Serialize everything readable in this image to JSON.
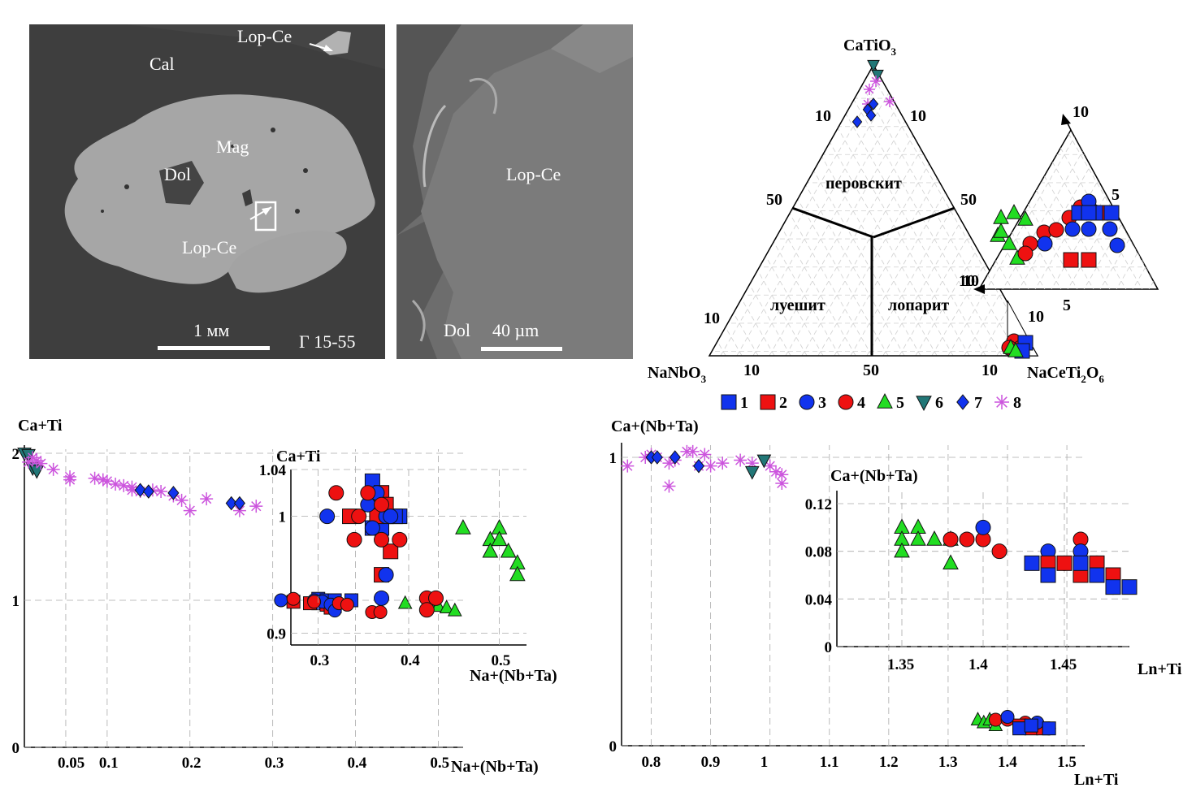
{
  "photo_left": {
    "labels": {
      "cal": "Cal",
      "lop_top": "Lop-Ce",
      "mag": "Mag",
      "dol": "Dol",
      "lop_mid": "Lop-Ce"
    },
    "scale_text": "1 мм",
    "sample_id": "Г 15-55"
  },
  "photo_right": {
    "labels": {
      "lop": "Lop-Ce",
      "dol": "Dol"
    },
    "scale_text": "40 µm"
  },
  "ternary": {
    "apex_top": "CaTiO",
    "apex_top_sub": "3",
    "apex_left": "NaNbO",
    "apex_left_sub": "3",
    "apex_right": "NaCeTi",
    "apex_right_sub1": "2",
    "apex_right_mid": "O",
    "apex_right_sub2": "6",
    "fields": {
      "perovskite": "перовскит",
      "loueshite": "луешит",
      "loparite": "лопарит"
    },
    "edge_labels": {
      "top_left": "10",
      "top_right": "10",
      "mid_left": "50",
      "mid_right": "50",
      "low_left": "10",
      "low_right": "10",
      "base_left": "10",
      "base_mid": "50",
      "base_right": "10"
    },
    "inset_labels": {
      "top": "10",
      "upper": "5",
      "left": "10",
      "bottom": "5",
      "corner": "10"
    }
  },
  "legend": {
    "items": [
      {
        "label": "1",
        "marker": "square",
        "color": "#1133ee"
      },
      {
        "label": "2",
        "marker": "square",
        "color": "#ee1111"
      },
      {
        "label": "3",
        "marker": "circle",
        "color": "#1133ee"
      },
      {
        "label": "4",
        "marker": "circle",
        "color": "#ee1111"
      },
      {
        "label": "5",
        "marker": "triangle",
        "color": "#22dd22"
      },
      {
        "label": "6",
        "marker": "tri-down",
        "color": "#227777"
      },
      {
        "label": "7",
        "marker": "diamond",
        "color": "#1133ee"
      },
      {
        "label": "8",
        "marker": "star",
        "color": "#cc55dd"
      }
    ]
  },
  "chart_data": [
    {
      "type": "scatter",
      "name": "left-main",
      "xlabel": "Na+(Nb+Ta)",
      "ylabel": "Ca+Ti",
      "xticks": [
        "0.05",
        "0.1",
        "0.2",
        "0.3",
        "0.4",
        "0.5"
      ],
      "yticks": [
        "0",
        "1",
        "2"
      ],
      "xlim": [
        0,
        0.53
      ],
      "ylim": [
        0,
        2
      ],
      "series": [
        {
          "group": "6",
          "points": [
            [
              0,
              2.0
            ],
            [
              0.005,
              1.99
            ],
            [
              0.01,
              1.9
            ],
            [
              0.015,
              1.88
            ]
          ]
        },
        {
          "group": "8",
          "points": [
            [
              0.005,
              1.94
            ],
            [
              0.01,
              1.97
            ],
            [
              0.015,
              1.95
            ],
            [
              0.02,
              1.93
            ],
            [
              0.035,
              1.89
            ],
            [
              0.055,
              1.84
            ],
            [
              0.055,
              1.82
            ],
            [
              0.085,
              1.83
            ],
            [
              0.095,
              1.82
            ],
            [
              0.1,
              1.81
            ],
            [
              0.11,
              1.79
            ],
            [
              0.12,
              1.78
            ],
            [
              0.13,
              1.77
            ],
            [
              0.13,
              1.75
            ],
            [
              0.14,
              1.74
            ],
            [
              0.155,
              1.75
            ],
            [
              0.165,
              1.74
            ],
            [
              0.18,
              1.71
            ],
            [
              0.19,
              1.68
            ],
            [
              0.2,
              1.61
            ],
            [
              0.22,
              1.69
            ],
            [
              0.26,
              1.61
            ],
            [
              0.28,
              1.64
            ]
          ]
        },
        {
          "group": "7",
          "points": [
            [
              0.14,
              1.75
            ],
            [
              0.15,
              1.74
            ],
            [
              0.18,
              1.73
            ],
            [
              0.25,
              1.66
            ],
            [
              0.26,
              1.66
            ]
          ]
        },
        {
          "group": "1",
          "points": [
            [
              0.355,
              1.01
            ],
            [
              0.365,
              1.0
            ],
            [
              0.375,
              1.0
            ],
            [
              0.395,
              1.0
            ],
            [
              0.355,
              0.98
            ]
          ]
        },
        {
          "group": "2",
          "points": [
            [
              0.325,
              0.99
            ],
            [
              0.345,
              0.98
            ],
            [
              0.365,
              0.97
            ],
            [
              0.375,
              0.96
            ],
            [
              0.37,
              0.95
            ]
          ]
        },
        {
          "group": "3",
          "points": [
            [
              0.31,
              1.0
            ],
            [
              0.35,
              1.0
            ],
            [
              0.36,
              0.99
            ],
            [
              0.37,
              0.97
            ],
            [
              0.375,
              0.93
            ]
          ]
        },
        {
          "group": "4",
          "points": [
            [
              0.325,
              1.01
            ],
            [
              0.35,
              0.99
            ],
            [
              0.38,
              0.98
            ],
            [
              0.39,
              0.97
            ],
            [
              0.42,
              0.92
            ],
            [
              0.43,
              0.92
            ]
          ]
        },
        {
          "group": "5",
          "points": [
            [
              0.46,
              0.98
            ],
            [
              0.49,
              0.97
            ],
            [
              0.5,
              0.96
            ],
            [
              0.51,
              0.95
            ],
            [
              0.52,
              0.93
            ]
          ]
        }
      ]
    },
    {
      "type": "scatter",
      "name": "left-inset",
      "xlabel": "Na+(Nb+Ta)",
      "ylabel": "Ca+Ti",
      "xticks": [
        "0.3",
        "0.4",
        "0.5"
      ],
      "yticks": [
        "0.9",
        "1",
        "1.04"
      ],
      "xlim": [
        0.27,
        0.53
      ],
      "ylim": [
        0.89,
        1.04
      ],
      "series": [
        {
          "group": "1",
          "points": [
            [
              0.36,
              1.03
            ],
            [
              0.37,
              1.02
            ],
            [
              0.365,
              1.005
            ],
            [
              0.375,
              1.0
            ],
            [
              0.39,
              1.0
            ],
            [
              0.36,
              0.99
            ],
            [
              0.37,
              0.99
            ],
            [
              0.385,
              1.0
            ]
          ]
        },
        {
          "group": "2",
          "points": [
            [
              0.335,
              1.0
            ],
            [
              0.37,
              1.02
            ],
            [
              0.375,
              1.01
            ],
            [
              0.365,
              1.0
            ],
            [
              0.38,
              0.97
            ],
            [
              0.37,
              0.95
            ]
          ]
        },
        {
          "group": "3",
          "points": [
            [
              0.31,
              1.0
            ],
            [
              0.355,
              1.01
            ],
            [
              0.365,
              1.02
            ],
            [
              0.375,
              1.0
            ],
            [
              0.36,
              0.99
            ],
            [
              0.37,
              0.93
            ],
            [
              0.375,
              0.95
            ],
            [
              0.38,
              1.0
            ]
          ]
        },
        {
          "group": "4",
          "points": [
            [
              0.32,
              1.02
            ],
            [
              0.345,
              1.0
            ],
            [
              0.355,
              1.02
            ],
            [
              0.34,
              0.98
            ],
            [
              0.37,
              0.98
            ],
            [
              0.39,
              0.98
            ],
            [
              0.42,
              0.93
            ],
            [
              0.43,
              0.93
            ],
            [
              0.42,
              0.92
            ],
            [
              0.37,
              1.01
            ]
          ]
        },
        {
          "group": "5",
          "points": [
            [
              0.46,
              0.99
            ],
            [
              0.49,
              0.98
            ],
            [
              0.5,
              0.99
            ],
            [
              0.49,
              0.97
            ],
            [
              0.5,
              0.98
            ],
            [
              0.51,
              0.97
            ],
            [
              0.52,
              0.96
            ],
            [
              0.52,
              0.95
            ]
          ]
        }
      ]
    },
    {
      "type": "scatter",
      "name": "right-main",
      "xlabel": "Ln+Ti",
      "ylabel": "Ca+(Nb+Ta)",
      "xticks": [
        "0.8",
        "0.9",
        "1",
        "1.1",
        "1.2",
        "1.3",
        "1.4",
        "1.5"
      ],
      "yticks": [
        "0",
        "1"
      ],
      "xlim": [
        0.75,
        1.53
      ],
      "ylim": [
        0,
        1
      ],
      "series": [
        {
          "group": "8",
          "points": [
            [
              0.76,
              0.97
            ],
            [
              0.79,
              1.0
            ],
            [
              0.8,
              1.01
            ],
            [
              0.81,
              1.0
            ],
            [
              0.83,
              0.98
            ],
            [
              0.84,
              0.99
            ],
            [
              0.86,
              1.02
            ],
            [
              0.87,
              1.02
            ],
            [
              0.89,
              1.01
            ],
            [
              0.88,
              0.97
            ],
            [
              0.9,
              0.97
            ],
            [
              0.92,
              0.98
            ],
            [
              0.95,
              0.99
            ],
            [
              0.97,
              0.98
            ],
            [
              1.0,
              0.97
            ],
            [
              1.01,
              0.95
            ],
            [
              1.02,
              0.94
            ],
            [
              1.02,
              0.91
            ],
            [
              0.83,
              0.9
            ]
          ]
        },
        {
          "group": "7",
          "points": [
            [
              0.8,
              1.0
            ],
            [
              0.81,
              1.0
            ],
            [
              0.84,
              1.0
            ],
            [
              0.88,
              0.97
            ]
          ]
        },
        {
          "group": "6",
          "points": [
            [
              0.97,
              0.95
            ],
            [
              0.99,
              0.99
            ]
          ]
        },
        {
          "group": "5",
          "points": [
            [
              1.35,
              0.09
            ],
            [
              1.36,
              0.08
            ],
            [
              1.37,
              0.09
            ],
            [
              1.38,
              0.07
            ]
          ]
        },
        {
          "group": "4",
          "points": [
            [
              1.38,
              0.09
            ],
            [
              1.4,
              0.09
            ],
            [
              1.43,
              0.08
            ],
            [
              1.45,
              0.08
            ]
          ]
        },
        {
          "group": "2",
          "points": [
            [
              1.42,
              0.07
            ],
            [
              1.44,
              0.06
            ],
            [
              1.46,
              0.06
            ]
          ]
        },
        {
          "group": "3",
          "points": [
            [
              1.4,
              0.1
            ],
            [
              1.45,
              0.08
            ],
            [
              1.47,
              0.06
            ]
          ]
        },
        {
          "group": "1",
          "points": [
            [
              1.42,
              0.06
            ],
            [
              1.44,
              0.07
            ],
            [
              1.47,
              0.06
            ]
          ]
        }
      ]
    },
    {
      "type": "scatter",
      "name": "right-inset",
      "xlabel": "Ln+Ti",
      "ylabel": "Ca+(Nb+Ta)",
      "xticks": [
        "1.35",
        "1.4",
        "1.45"
      ],
      "yticks": [
        "0",
        "0.04",
        "0.08",
        "0.12"
      ],
      "xlim": [
        1.31,
        1.49
      ],
      "ylim": [
        0,
        0.12
      ],
      "series": [
        {
          "group": "5",
          "points": [
            [
              1.35,
              0.1
            ],
            [
              1.36,
              0.1
            ],
            [
              1.36,
              0.09
            ],
            [
              1.35,
              0.09
            ],
            [
              1.35,
              0.08
            ],
            [
              1.38,
              0.09
            ],
            [
              1.38,
              0.07
            ],
            [
              1.37,
              0.09
            ]
          ]
        },
        {
          "group": "4",
          "points": [
            [
              1.38,
              0.09
            ],
            [
              1.39,
              0.09
            ],
            [
              1.4,
              0.09
            ],
            [
              1.41,
              0.08
            ],
            [
              1.44,
              0.07
            ],
            [
              1.45,
              0.07
            ],
            [
              1.46,
              0.09
            ],
            [
              1.48,
              0.06
            ]
          ]
        },
        {
          "group": "3",
          "points": [
            [
              1.4,
              0.1
            ],
            [
              1.44,
              0.08
            ],
            [
              1.46,
              0.08
            ],
            [
              1.47,
              0.07
            ],
            [
              1.48,
              0.05
            ]
          ]
        },
        {
          "group": "2",
          "points": [
            [
              1.44,
              0.07
            ],
            [
              1.45,
              0.07
            ],
            [
              1.46,
              0.06
            ],
            [
              1.47,
              0.07
            ],
            [
              1.48,
              0.06
            ]
          ]
        },
        {
          "group": "1",
          "points": [
            [
              1.43,
              0.07
            ],
            [
              1.44,
              0.06
            ],
            [
              1.46,
              0.07
            ],
            [
              1.47,
              0.06
            ],
            [
              1.48,
              0.05
            ],
            [
              1.49,
              0.05
            ]
          ]
        }
      ]
    }
  ]
}
